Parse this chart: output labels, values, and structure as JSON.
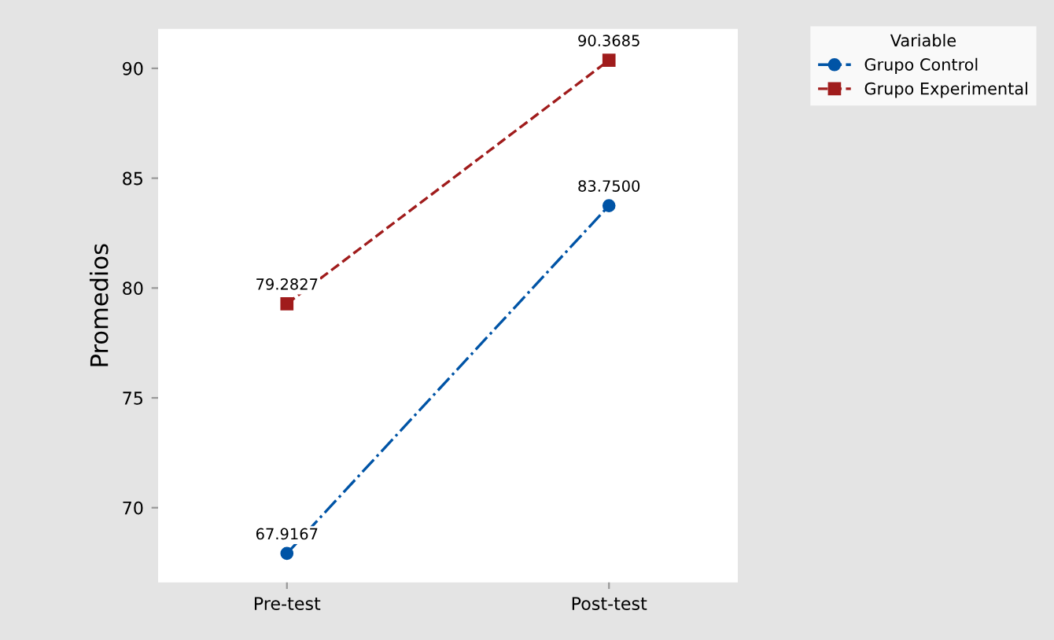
{
  "chart_data": {
    "type": "line",
    "ylabel": "Promedios",
    "legend_title": "Variable",
    "categories": [
      "Pre-test",
      "Post-test"
    ],
    "series": [
      {
        "name": "Grupo Control",
        "color": "#0054a6",
        "values": [
          67.9167,
          83.75
        ],
        "marker": "circle",
        "line_style": "dashdot",
        "value_labels": [
          "67.9167",
          "83.7500"
        ]
      },
      {
        "name": "Grupo Experimental",
        "color": "#a01c1c",
        "values": [
          79.2827,
          90.3685
        ],
        "marker": "square",
        "line_style": "dashed",
        "value_labels": [
          "79.2827",
          "90.3685"
        ]
      }
    ],
    "ylim": [
      66.6,
      91.8
    ],
    "yticks": [
      70,
      75,
      80,
      85,
      90
    ],
    "grid": false,
    "legend": "top right"
  }
}
